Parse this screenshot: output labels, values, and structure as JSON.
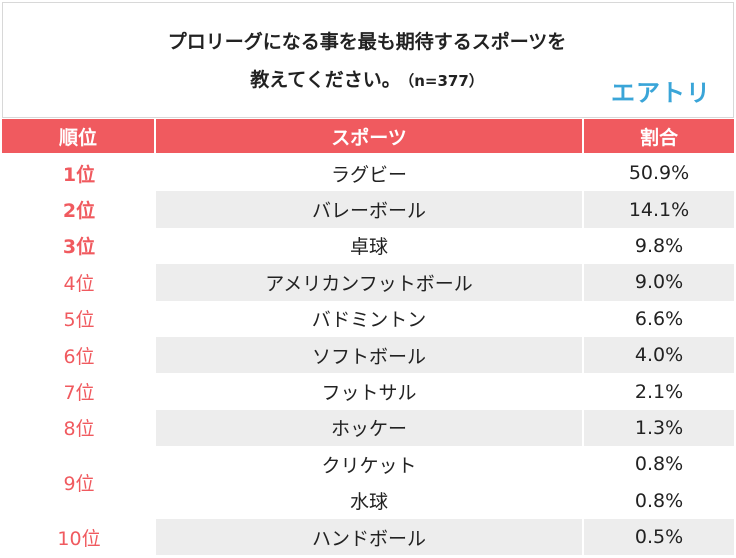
{
  "title": {
    "line1": "プロリーグになる事を最も期待するスポーツを",
    "line2": "教えてください。",
    "sample": "（n=377）",
    "logo": "エアトリ"
  },
  "header": {
    "rank": "順位",
    "sport": "スポーツ",
    "share": "割合"
  },
  "ranks": [
    {
      "label": "1位"
    },
    {
      "label": "2位"
    },
    {
      "label": "3位"
    },
    {
      "label": "4位"
    },
    {
      "label": "5位"
    },
    {
      "label": "6位"
    },
    {
      "label": "7位"
    },
    {
      "label": "8位"
    },
    {
      "label": "9位"
    },
    {
      "label": "10位"
    }
  ],
  "rows": [
    {
      "sport": "ラグビー",
      "share": "50.9%"
    },
    {
      "sport": "バレーボール",
      "share": "14.1%"
    },
    {
      "sport": "卓球",
      "share": "9.8%"
    },
    {
      "sport": "アメリカンフットボール",
      "share": "9.0%"
    },
    {
      "sport": "バドミントン",
      "share": "6.6%"
    },
    {
      "sport": "ソフトボール",
      "share": "4.0%"
    },
    {
      "sport": "フットサル",
      "share": "2.1%"
    },
    {
      "sport": "ホッケー",
      "share": "1.3%"
    },
    {
      "sport": "クリケット",
      "share": "0.8%"
    },
    {
      "sport": "水球",
      "share": "0.8%"
    },
    {
      "sport": "ハンドボール",
      "share": "0.5%"
    }
  ],
  "colors": {
    "accent": "#f05a5f",
    "logo": "#3aa5d8",
    "shade": "#ededed"
  }
}
